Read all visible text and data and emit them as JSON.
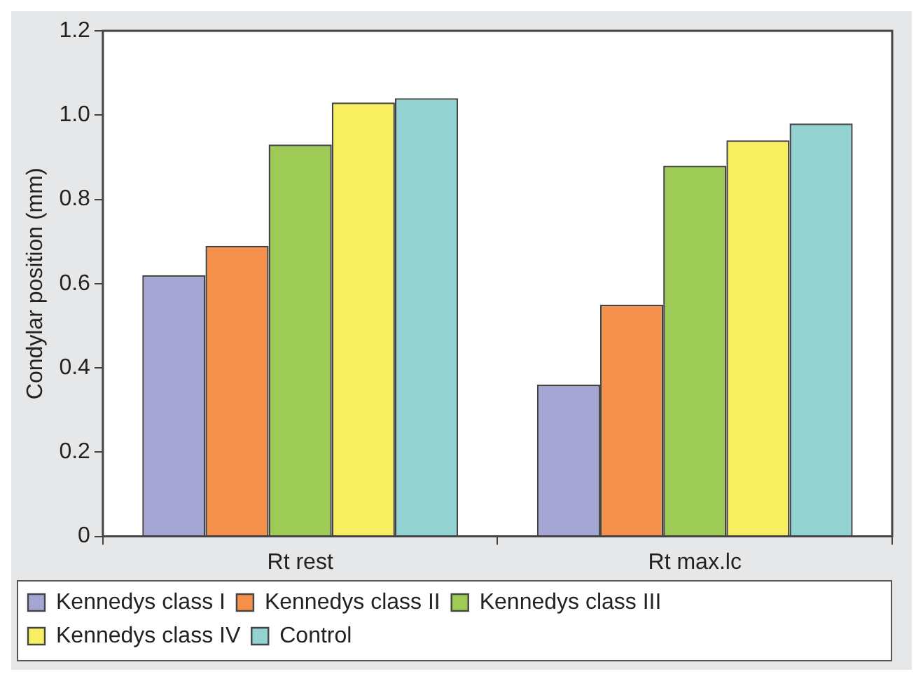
{
  "chart_data": {
    "type": "bar",
    "ylabel": "Condylar position (mm)",
    "categories": [
      "Rt rest",
      "Rt max.lc"
    ],
    "series": [
      {
        "name": "Kennedys class I",
        "color": "#a5a6d4",
        "values": [
          0.62,
          0.36
        ]
      },
      {
        "name": "Kennedys class II",
        "color": "#f5914a",
        "values": [
          0.69,
          0.55
        ]
      },
      {
        "name": "Kennedys class III",
        "color": "#9dcb55",
        "values": [
          0.93,
          0.88
        ]
      },
      {
        "name": "Kennedys class IV",
        "color": "#f7ef60",
        "values": [
          1.03,
          0.94
        ]
      },
      {
        "name": "Control",
        "color": "#92d3d2",
        "values": [
          1.04,
          0.98
        ]
      }
    ],
    "ylim": [
      0,
      1.2
    ],
    "yticks": [
      0,
      0.2,
      0.4,
      0.6,
      0.8,
      {
        "value": 1,
        "label": "1.0"
      },
      1.2
    ],
    "grid": false,
    "legend": "bottom"
  }
}
